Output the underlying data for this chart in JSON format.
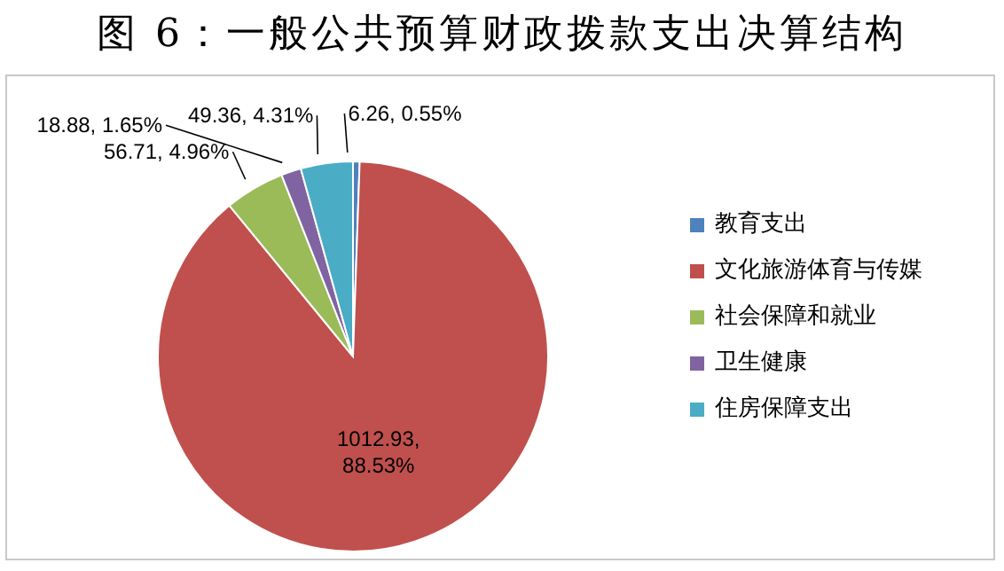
{
  "chart_data": {
    "type": "pie",
    "title": "图 6：一般公共预算财政拨款支出决算结构",
    "categories": [
      "教育支出",
      "文化旅游体育与传媒",
      "社会保障和就业",
      "卫生健康",
      "住房保障支出"
    ],
    "values": [
      6.26,
      1012.93,
      56.71,
      18.88,
      49.36
    ],
    "value_labels": [
      "6.26, 0.55%",
      "1012.93, 88.53%",
      "56.71, 4.96%",
      "18.88, 1.65%",
      "49.36, 4.31%"
    ],
    "colors": [
      "#4f81bd",
      "#c0504d",
      "#9bbb59",
      "#8064a2",
      "#4bacc6"
    ],
    "legend": "right"
  }
}
